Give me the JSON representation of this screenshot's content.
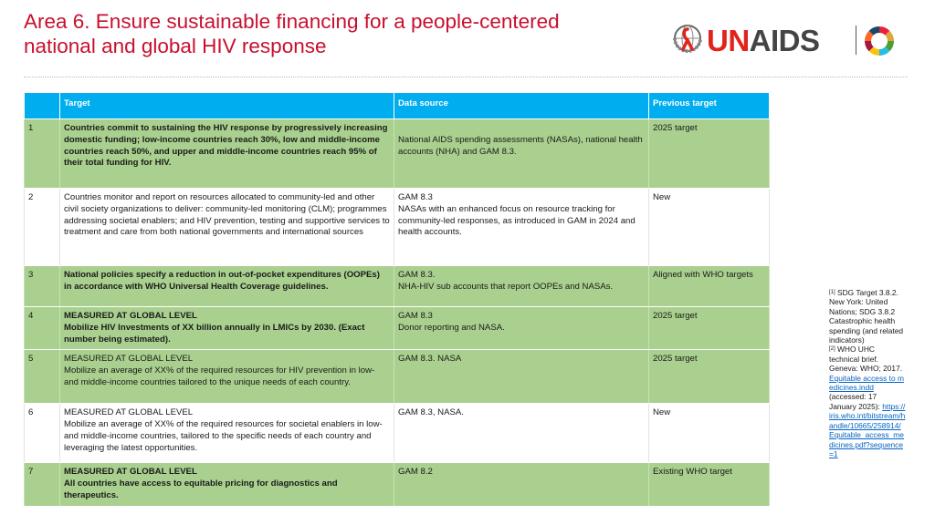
{
  "header": {
    "title_line1": "Area 6. Ensure sustainable financing for a people-centered",
    "title_line2": "national and global HIV response",
    "logo_text_red": "UN",
    "logo_text_dark": "AIDS",
    "logo_icon": "unaids-emblem-icon",
    "sdg_icon": "sdg-wheel-icon",
    "accent_color": "#c8102e"
  },
  "table": {
    "columns": [
      "",
      "Target",
      "Data source",
      "Previous target"
    ],
    "header_color": "#00aeef",
    "row_color": "#a9d08e",
    "rows": [
      {
        "num": "1",
        "target": "Countries commit to sustaining the HIV response by progressively increasing domestic funding; low-income countries reach 30%, low and middle-income countries reach 50%, and upper and middle-income countries reach 95% of their total funding for HIV.",
        "source": "National AIDS spending assessments (NASAs), national health accounts (NHA) and GAM 8.3.",
        "previous": "2025 target"
      },
      {
        "num": "2",
        "target": "Countries monitor and report on resources allocated to community-led and other civil society organizations to deliver: community-led monitoring (CLM); programmes addressing societal enablers; and HIV prevention, testing and supportive services to treatment and care from both national governments and international sources",
        "source_l1": "GAM 8.3",
        "source_l2": "NASAs with an enhanced focus on resource tracking for community-led responses, as introduced in GAM in 2024 and health accounts.",
        "previous": "New"
      },
      {
        "num": "3",
        "target": "National policies specify a reduction in out-of-pocket expenditures (OOPEs) in accordance with WHO Universal Health Coverage guidelines.",
        "source_l1": "GAM 8.3.",
        "source_l2": "NHA-HIV sub accounts that report OOPEs and NASAs.",
        "previous": "Aligned with WHO targets"
      },
      {
        "num": "4",
        "target_l1": "MEASURED AT GLOBAL LEVEL",
        "target_l2": "Mobilize HIV Investments of XX billion annually in LMICs by 2030. (Exact number being estimated).",
        "source_l1": "GAM 8.3",
        "source_l2": "Donor reporting and NASA.",
        "previous": "2025 target"
      },
      {
        "num": "5",
        "target_l1": "MEASURED AT GLOBAL LEVEL",
        "target_l2": "Mobilize an average of XX% of the required resources for HIV prevention in low- and middle-income countries tailored to the unique needs of each country.",
        "source": "GAM 8.3. NASA",
        "previous": "2025 target"
      },
      {
        "num": "6",
        "target_l1": "MEASURED AT GLOBAL LEVEL",
        "target_l2": "Mobilize an average of XX% of the required resources for societal enablers in low- and middle-income countries, tailored to the specific needs of each country and leveraging the latest opportunities.",
        "source": "GAM 8.3, NASA.",
        "previous": "New"
      },
      {
        "num": "7",
        "target_l1": "MEASURED AT GLOBAL LEVEL",
        "target_l2": "All countries have access to equitable pricing for diagnostics and therapeutics.",
        "source": "GAM 8.2",
        "previous": "Existing WHO target"
      }
    ]
  },
  "footnotes": {
    "fn1_mark": "[1]",
    "fn1_text": "SDG Target 3.8.2. New York: United Nations; SDG 3.8.2 Catastrophic health spending (and related indicators)",
    "fn2_mark": "[2]",
    "fn2_text": "WHO UHC technical brief. Geneva: WHO; 2017.",
    "fn2_link": "Equitable access to medicines.indd",
    "fn2_accessed": "(accessed: 17 January 2025):",
    "fn2_url": "https://iris.who.int/bitstream/handle/10665/258914/Equitable_access_medicines.pdf?sequence=1"
  }
}
